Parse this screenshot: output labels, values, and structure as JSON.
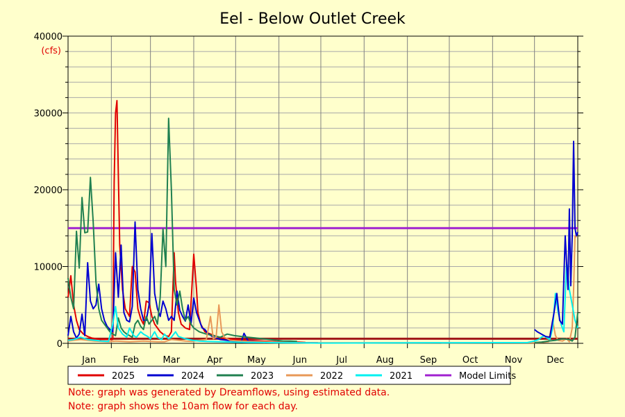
{
  "chart_data": {
    "type": "line",
    "title": "Eel - Below Outlet Creek",
    "ylabel": "(cfs)",
    "xlabel": "",
    "ylim": [
      0,
      40000
    ],
    "xlim": [
      1,
      366
    ],
    "grid": true,
    "y_ticks": [
      0,
      10000,
      20000,
      30000,
      40000
    ],
    "x_tick_labels": [
      {
        "label": "Jan",
        "day": 16
      },
      {
        "label": "Feb",
        "day": 46
      },
      {
        "label": "Mar",
        "day": 75
      },
      {
        "label": "Apr",
        "day": 106
      },
      {
        "label": "May",
        "day": 136
      },
      {
        "label": "Jun",
        "day": 167
      },
      {
        "label": "Jul",
        "day": 197
      },
      {
        "label": "Aug",
        "day": 228
      },
      {
        "label": "Sep",
        "day": 259
      },
      {
        "label": "Oct",
        "day": 289
      },
      {
        "label": "Nov",
        "day": 320
      },
      {
        "label": "Dec",
        "day": 350
      }
    ],
    "month_boundaries": [
      1,
      32,
      60,
      91,
      121,
      152,
      182,
      213,
      244,
      274,
      305,
      335,
      366
    ],
    "legend_placement": "bottom",
    "series": [
      {
        "name": "2025",
        "color": "#E00000",
        "x": [
          1,
          3,
          5,
          7,
          9,
          12,
          15,
          18,
          21,
          24,
          27,
          30,
          33,
          34,
          35,
          36,
          37,
          38,
          40,
          42,
          45,
          47,
          49,
          51,
          53,
          55,
          57,
          59,
          61,
          63,
          65,
          67,
          69,
          71,
          73,
          75,
          77,
          78,
          80,
          82,
          85,
          88,
          91,
          93,
          94,
          96,
          99,
          103,
          107,
          111,
          116,
          121,
          130,
          140,
          150,
          160,
          166,
          171
        ],
        "y": [
          6000,
          8800,
          5000,
          3000,
          1800,
          1200,
          900,
          700,
          600,
          500,
          500,
          500,
          500,
          21000,
          30000,
          31600,
          22000,
          12800,
          7000,
          4500,
          3500,
          10000,
          9300,
          4500,
          3200,
          2500,
          5500,
          5300,
          3500,
          2500,
          2000,
          1500,
          1200,
          1000,
          900,
          1500,
          11800,
          8000,
          4000,
          2500,
          2000,
          1800,
          11600,
          7000,
          4000,
          2500,
          1500,
          1200,
          900,
          700,
          600,
          500,
          400,
          300,
          200,
          150,
          150,
          120
        ]
      },
      {
        "name": "2024",
        "color": "#0000D0",
        "x": [
          1,
          3,
          5,
          7,
          9,
          11,
          13,
          15,
          17,
          19,
          21,
          23,
          25,
          27,
          29,
          31,
          33,
          35,
          37,
          39,
          41,
          43,
          45,
          47,
          49,
          51,
          53,
          55,
          57,
          59,
          61,
          63,
          65,
          67,
          69,
          71,
          73,
          75,
          77,
          79,
          81,
          83,
          85,
          87,
          89,
          91,
          93,
          95,
          97,
          99,
          101,
          105,
          110,
          115,
          120,
          125,
          127,
          130,
          140,
          150,
          160,
          170,
          180
        ],
        "y": [
          1000,
          3500,
          1500,
          700,
          1200,
          3800,
          1000,
          10500,
          5500,
          4500,
          5000,
          7700,
          4500,
          3000,
          2200,
          1800,
          1500,
          11800,
          6000,
          12800,
          4000,
          3000,
          2800,
          4800,
          15800,
          7000,
          4500,
          3000,
          3000,
          5000,
          14300,
          6500,
          4500,
          3500,
          5500,
          4500,
          3000,
          3500,
          3000,
          6800,
          4300,
          3500,
          2900,
          5000,
          2500,
          5900,
          4000,
          3000,
          2000,
          1800,
          1300,
          800,
          500,
          400,
          300,
          200,
          1300,
          300,
          200,
          150,
          100,
          80,
          60
        ]
      },
      {
        "name": "2023",
        "color": "#208050",
        "x": [
          1,
          3,
          5,
          7,
          9,
          11,
          13,
          15,
          17,
          19,
          21,
          23,
          25,
          27,
          29,
          31,
          33,
          35,
          37,
          39,
          41,
          43,
          45,
          47,
          49,
          51,
          53,
          55,
          57,
          59,
          61,
          63,
          65,
          67,
          69,
          71,
          73,
          75,
          77,
          79,
          81,
          83,
          85,
          87,
          89,
          91,
          95,
          100,
          105,
          110,
          115,
          120,
          125,
          130,
          135,
          140,
          145,
          150,
          155,
          160,
          165
        ],
        "y": [
          8500,
          6000,
          4500,
          14600,
          9800,
          19000,
          14400,
          14500,
          21600,
          15800,
          8000,
          4500,
          3000,
          2500,
          2000,
          1500,
          1200,
          1000,
          3300,
          2000,
          1500,
          1200,
          1000,
          800,
          2500,
          3000,
          2200,
          1800,
          3500,
          2500,
          3000,
          3500,
          2500,
          6000,
          14900,
          10000,
          29300,
          20000,
          7000,
          5000,
          6800,
          4500,
          3000,
          3500,
          2500,
          2000,
          1500,
          1200,
          1000,
          800,
          1200,
          1000,
          900,
          800,
          700,
          600,
          500,
          400,
          300,
          300,
          250
        ]
      },
      {
        "name": "2022",
        "color": "#E89858",
        "x": [
          1,
          5,
          10,
          15,
          20,
          25,
          30,
          35,
          40,
          45,
          50,
          55,
          60,
          65,
          70,
          75,
          80,
          85,
          90,
          95,
          100,
          103,
          105,
          107,
          109,
          111,
          113,
          115,
          117,
          120,
          125,
          130,
          140,
          150,
          160,
          170,
          180,
          335,
          340,
          345,
          348,
          350,
          352,
          355,
          358,
          360,
          362,
          363,
          364,
          365
        ],
        "y": [
          300,
          400,
          500,
          400,
          300,
          250,
          200,
          300,
          250,
          200,
          250,
          300,
          250,
          200,
          200,
          500,
          400,
          300,
          250,
          400,
          500,
          3500,
          600,
          800,
          5000,
          1500,
          800,
          600,
          400,
          350,
          300,
          250,
          200,
          150,
          100,
          80,
          60,
          80,
          120,
          200,
          3000,
          1000,
          400,
          300,
          600,
          200,
          2000,
          7000,
          14000,
          13800
        ]
      },
      {
        "name": "2021",
        "color": "#00F0F0",
        "x": [
          1,
          5,
          10,
          15,
          20,
          25,
          30,
          33,
          35,
          37,
          40,
          43,
          45,
          48,
          50,
          53,
          55,
          58,
          60,
          63,
          65,
          68,
          70,
          73,
          75,
          78,
          80,
          85,
          90,
          95,
          100,
          110,
          120,
          130,
          140,
          150,
          160,
          170,
          180,
          330,
          335,
          338,
          340,
          342,
          344,
          346,
          348,
          350,
          352,
          354,
          356,
          358,
          360,
          362,
          364,
          366
        ],
        "y": [
          400,
          500,
          800,
          500,
          400,
          300,
          250,
          2500,
          4800,
          2000,
          1200,
          800,
          2000,
          1000,
          800,
          1500,
          1200,
          900,
          600,
          1500,
          800,
          500,
          1200,
          600,
          800,
          1500,
          900,
          600,
          400,
          300,
          250,
          200,
          150,
          120,
          100,
          80,
          60,
          50,
          40,
          100,
          300,
          500,
          800,
          1000,
          700,
          500,
          2000,
          6500,
          4000,
          2500,
          1500,
          10500,
          7000,
          5000,
          3000,
          2000
        ]
      },
      {
        "name": "Model Limits",
        "color": "#A020D0",
        "x": [
          1,
          366
        ],
        "y": [
          15000,
          15000
        ]
      },
      {
        "name": "Model Limits lower",
        "color": "#A01818",
        "x": [
          1,
          366
        ],
        "y": [
          600,
          600
        ]
      },
      {
        "name": "2024 (Dec)",
        "color": "#0000D0",
        "x": [
          335,
          337,
          340,
          343,
          346,
          349,
          351,
          353,
          355,
          357,
          359,
          360,
          361,
          362,
          363,
          364,
          365,
          366
        ],
        "y": [
          1800,
          1500,
          1200,
          900,
          800,
          4000,
          6500,
          3000,
          2500,
          14000,
          7000,
          17500,
          7500,
          14000,
          26300,
          15000,
          14000,
          14500
        ]
      },
      {
        "name": "2023 (Dec)",
        "color": "#208050",
        "x": [
          335,
          340,
          345,
          350,
          355,
          360,
          362,
          364,
          366
        ],
        "y": [
          100,
          150,
          300,
          400,
          600,
          500,
          300,
          800,
          4000
        ]
      }
    ]
  },
  "legend": {
    "items": [
      {
        "label": "2025",
        "color": "#E00000"
      },
      {
        "label": "2024",
        "color": "#0000D0"
      },
      {
        "label": "2023",
        "color": "#208050"
      },
      {
        "label": "2022",
        "color": "#E89858"
      },
      {
        "label": "2021",
        "color": "#00F0F0"
      },
      {
        "label": "Model Limits",
        "color": "#A020D0"
      }
    ]
  },
  "notes": [
    "Note: graph was generated by Dreamflows, using estimated data.",
    "Note: graph shows the 10am flow for each day."
  ],
  "colors": {
    "background": "#FFFFCC",
    "title": "#000000",
    "unit": "#E00000",
    "note": "#E00000"
  }
}
